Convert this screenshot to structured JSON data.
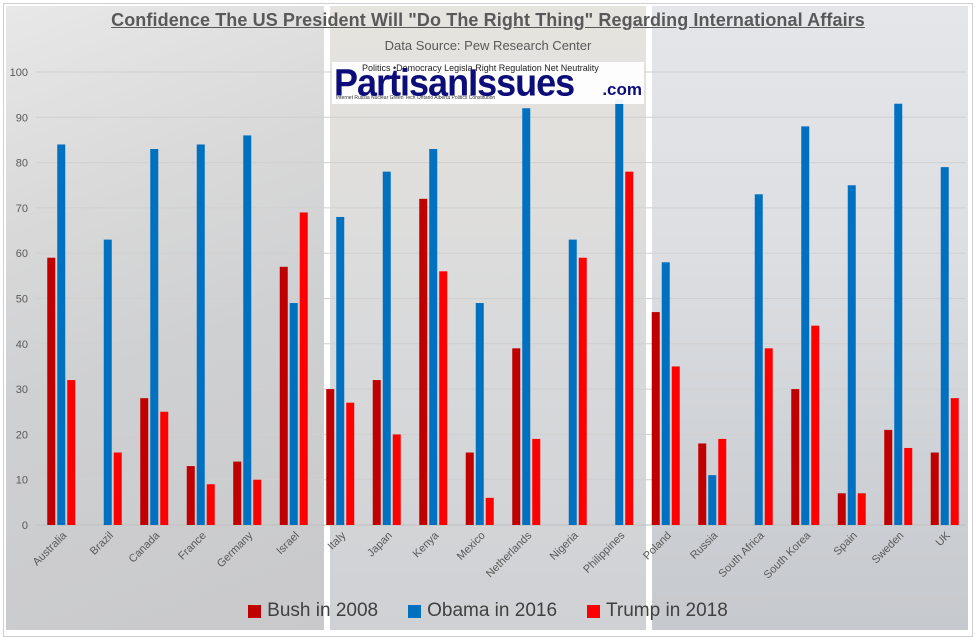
{
  "logo": {
    "main": "PartisanIssues",
    "suffix": ".com",
    "words_top": "Politics  •Democracy Legisla  Right  Regulation  Net Neutrality",
    "words_bottom": "Internet  Russia  Nuclear  Green Tech  Ontario  Alberta  Politics Constitution"
  },
  "chart_data": {
    "type": "bar",
    "title": "Confidence The US President Will \"Do The Right Thing\" Regarding International Affairs",
    "subtitle": "Data Source: Pew Research Center",
    "xlabel": "",
    "ylabel": "",
    "ylim": [
      0,
      100
    ],
    "yticks": [
      0,
      10,
      20,
      30,
      40,
      50,
      60,
      70,
      80,
      90,
      100
    ],
    "grid": true,
    "legend_position": "bottom",
    "categories": [
      "Australia",
      "Brazil",
      "Canada",
      "France",
      "Germany",
      "Israel",
      "Italy",
      "Japan",
      "Kenya",
      "Mexico",
      "Netherlands",
      "Nigeria",
      "Philippines",
      "Poland",
      "Russia",
      "South Africa",
      "South Korea",
      "Spain",
      "Sweden",
      "UK"
    ],
    "series": [
      {
        "name": "Bush in 2008",
        "color": "#c00000",
        "values": [
          59,
          null,
          28,
          13,
          14,
          57,
          30,
          32,
          72,
          16,
          39,
          null,
          null,
          47,
          18,
          null,
          30,
          7,
          21,
          16
        ]
      },
      {
        "name": "Obama in 2016",
        "color": "#0070c0",
        "values": [
          84,
          63,
          83,
          84,
          86,
          49,
          68,
          78,
          83,
          49,
          92,
          63,
          94,
          58,
          11,
          73,
          88,
          75,
          93,
          79
        ]
      },
      {
        "name": "Trump in 2018",
        "color": "#ff0000",
        "values": [
          32,
          16,
          25,
          9,
          10,
          69,
          27,
          20,
          56,
          6,
          19,
          59,
          78,
          35,
          19,
          39,
          44,
          7,
          17,
          28
        ]
      }
    ]
  }
}
